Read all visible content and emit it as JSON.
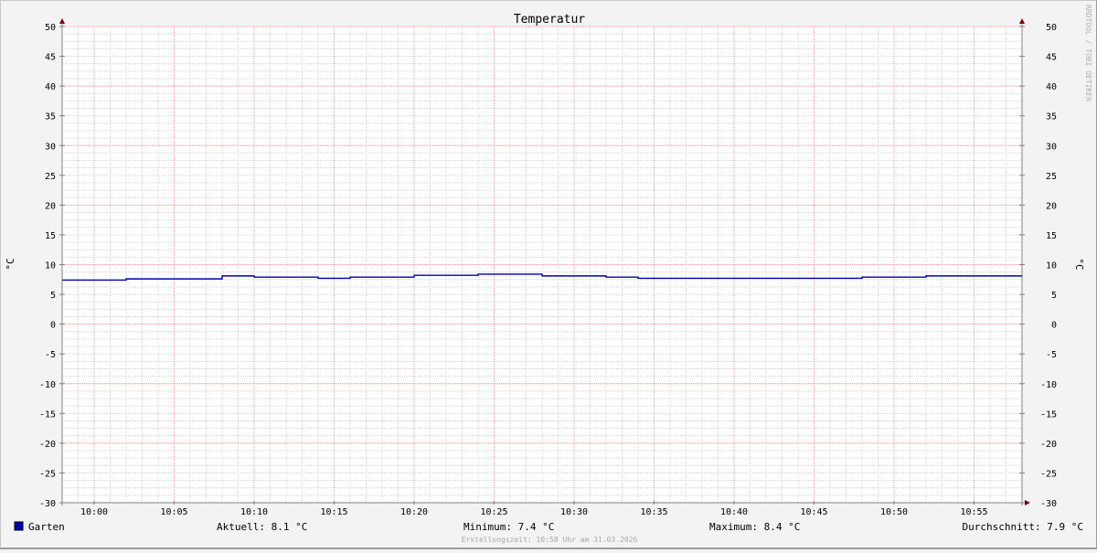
{
  "chart_data": {
    "type": "line",
    "title": "Temperatur",
    "ylabel": "°C",
    "ylabel_right": "°C",
    "ylim": [
      -30,
      50
    ],
    "y_ticks": [
      50,
      45,
      40,
      35,
      30,
      25,
      20,
      15,
      10,
      5,
      0,
      -5,
      -10,
      -15,
      -20,
      -25,
      -30
    ],
    "xlim": [
      "09:58",
      "10:58"
    ],
    "x_ticks": [
      "10:00",
      "10:05",
      "10:10",
      "10:15",
      "10:20",
      "10:25",
      "10:30",
      "10:35",
      "10:40",
      "10:45",
      "10:50",
      "10:55"
    ],
    "grid": true,
    "step": true,
    "series": [
      {
        "name": "Garten",
        "color": "#0000b4",
        "x": [
          "09:58",
          "10:02",
          "10:08",
          "10:10",
          "10:14",
          "10:16",
          "10:20",
          "10:24",
          "10:28",
          "10:32",
          "10:34",
          "10:48",
          "10:52",
          "10:58"
        ],
        "y": [
          7.4,
          7.6,
          8.1,
          7.9,
          7.7,
          7.9,
          8.2,
          8.4,
          8.1,
          7.9,
          7.7,
          7.9,
          8.1,
          8.1
        ]
      }
    ],
    "legend": {
      "position": "bottom",
      "series_label": "Garten",
      "current": "Aktuell: 8.1 °C",
      "minimum": "Minimum: 7.4 °C",
      "maximum": "Maximum: 8.4 °C",
      "average": "Durchschnitt: 7.9 °C"
    },
    "footer": "Erstellungszeit: 10:58 Uhr am 31.03.2026",
    "watermark": "RRDTOOL / TOBI OETIKER"
  }
}
